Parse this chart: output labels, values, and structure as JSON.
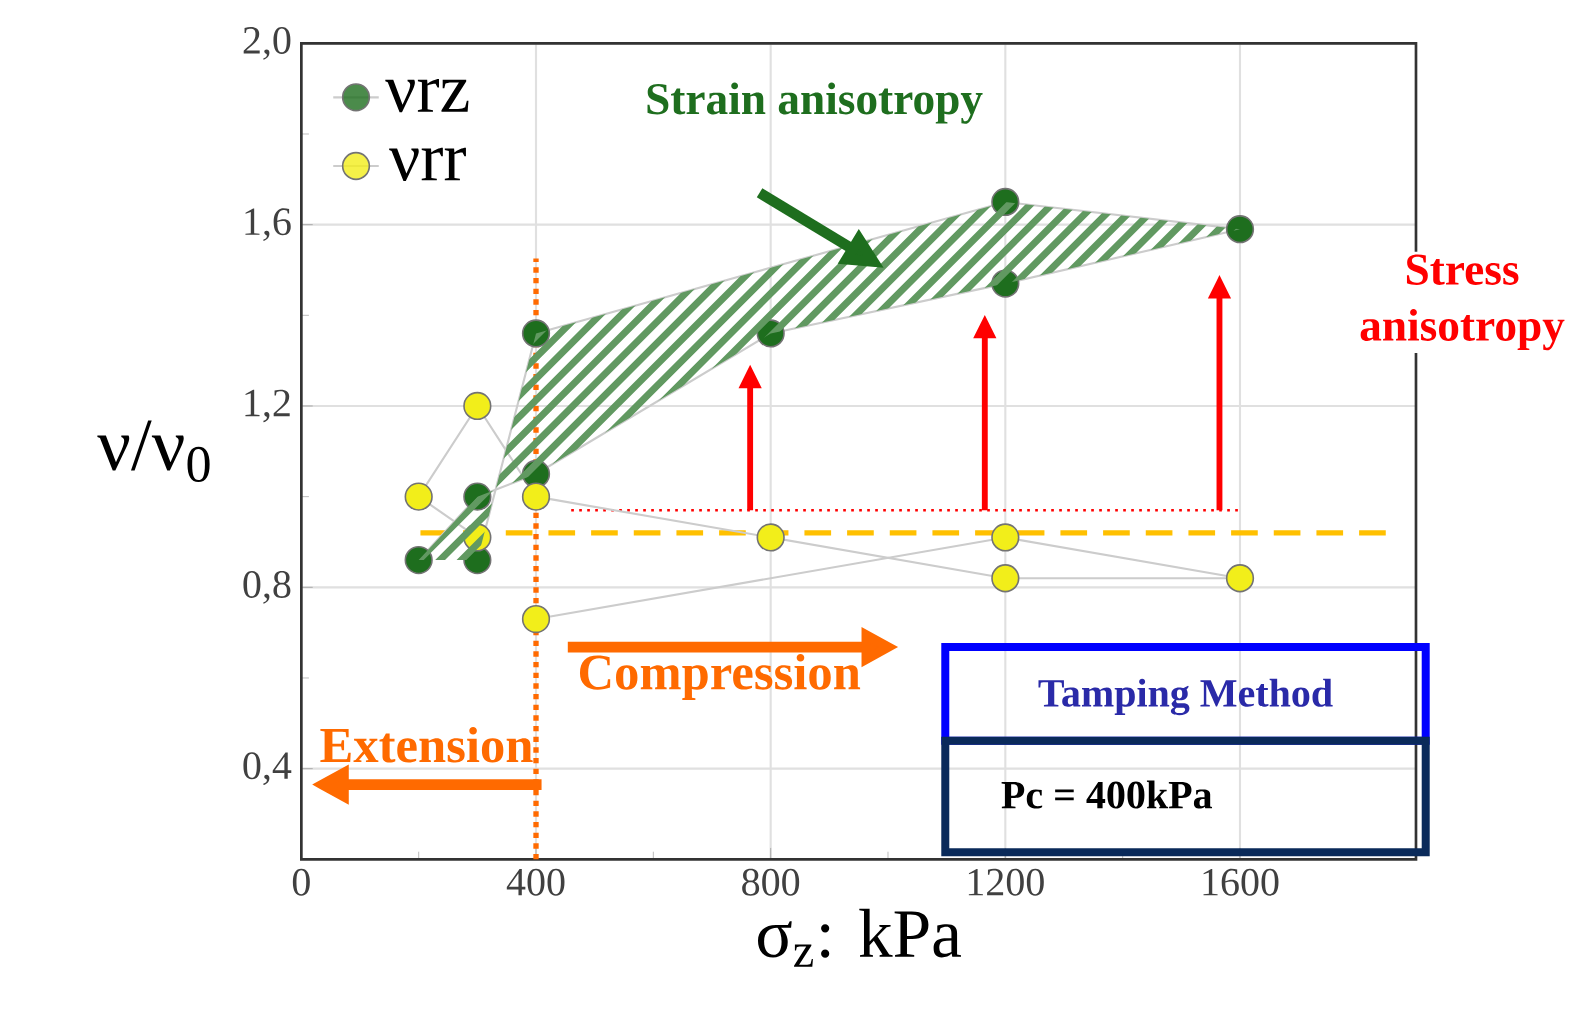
{
  "chart_data": {
    "type": "line",
    "xlabel": "σ$_{z}$: kPa",
    "ylabel": "ν/ν$_{0}$",
    "xlim": [
      0,
      1900
    ],
    "xticks": [
      0,
      400,
      800,
      1200,
      1600
    ],
    "ylim": [
      0.2,
      2.0
    ],
    "yticks": [
      {
        "value": 0.4,
        "label": "0,4"
      },
      {
        "value": 0.8,
        "label": "0,8"
      },
      {
        "value": 1.2,
        "label": "1,2"
      },
      {
        "value": 1.6,
        "label": "1,6"
      },
      {
        "value": 2.0,
        "label": "2,0"
      }
    ],
    "grid": true,
    "legend": "top left",
    "marker": "circle",
    "line_style": "solid",
    "series": [
      {
        "name": "νrz",
        "color": "#1e6e1e",
        "x": [
          200,
          300,
          400,
          800,
          1200,
          1600,
          1200,
          400,
          300
        ],
        "values": [
          0.86,
          1.0,
          1.05,
          1.36,
          1.47,
          1.59,
          1.65,
          1.36,
          0.86
        ]
      },
      {
        "name": "νrr",
        "color": "#f2ee1a",
        "x": [
          300,
          200,
          300,
          400,
          800,
          1200,
          1600,
          1200,
          400
        ],
        "values": [
          0.91,
          1.0,
          1.2,
          1.0,
          0.91,
          0.82,
          0.82,
          0.91,
          0.73
        ]
      }
    ],
    "ref_lines": [
      {
        "axis": "y",
        "value": 0.92,
        "color": "#ffc000",
        "line_style": "dashed"
      },
      {
        "axis": "y",
        "value": 0.97,
        "color": "#ff0000",
        "line_style": "dotted"
      },
      {
        "axis": "x",
        "value": 400,
        "color": "#ff6a00",
        "line_style": "dotted"
      }
    ],
    "annotations": [
      "Strain anisotropy",
      "Stress anisotropy",
      "Compression",
      "Extension",
      "Tamping Method",
      "Pc = 400kPa"
    ]
  }
}
